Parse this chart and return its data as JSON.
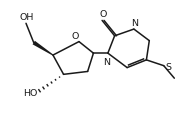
{
  "bg_color": "#ffffff",
  "line_color": "#1a1a1a",
  "line_width": 1.1,
  "font_size": 6.8,
  "fig_width": 1.83,
  "fig_height": 1.16,
  "dpi": 100,
  "xlim": [
    0,
    9.5
  ],
  "ylim": [
    0,
    6.0
  ]
}
